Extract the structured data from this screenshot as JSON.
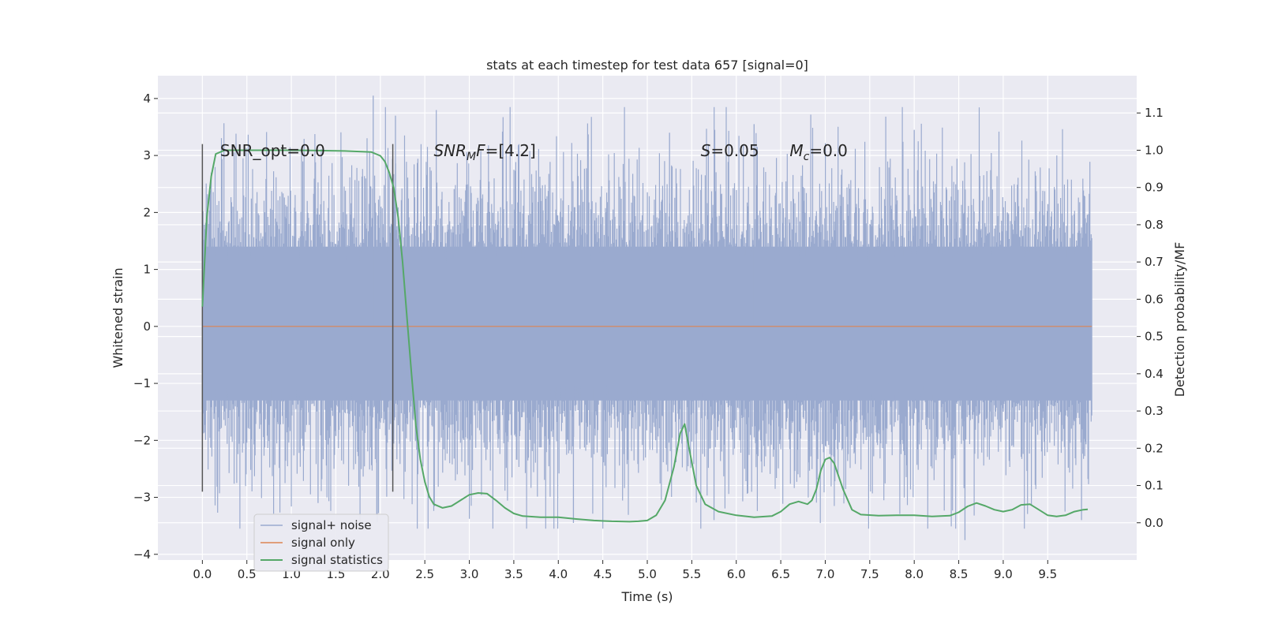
{
  "chart_data": {
    "type": "line",
    "title": "stats at each timestep for test data 657 [signal=0]",
    "xlabel": "Time (s)",
    "ylabel": "Whitened strain",
    "y2label": "Detection probability/MF",
    "xlim": [
      -0.5,
      10.5
    ],
    "ylim": [
      -4.1,
      4.4
    ],
    "y2lim": [
      -0.1,
      1.2
    ],
    "x_ticks": [
      0.0,
      0.5,
      1.0,
      1.5,
      2.0,
      2.5,
      3.0,
      3.5,
      4.0,
      4.5,
      5.0,
      5.5,
      6.0,
      6.5,
      7.0,
      7.5,
      8.0,
      8.5,
      9.0,
      9.5
    ],
    "x_tick_labels": [
      "0.0",
      "0.5",
      "1.0",
      "1.5",
      "2.0",
      "2.5",
      "3.0",
      "3.5",
      "4.0",
      "4.5",
      "5.0",
      "5.5",
      "6.0",
      "6.5",
      "7.0",
      "7.5",
      "8.0",
      "8.5",
      "9.0",
      "9.5"
    ],
    "y_ticks": [
      4,
      3,
      2,
      1,
      0,
      -1,
      -2,
      -3,
      -4
    ],
    "y_tick_labels": [
      "4",
      "3",
      "2",
      "1",
      "0",
      "−1",
      "−2",
      "−3",
      "−4"
    ],
    "y2_ticks": [
      1.1,
      1.0,
      0.9,
      0.8,
      0.7,
      0.6,
      0.5,
      0.4,
      0.3,
      0.2,
      0.1,
      0.0
    ],
    "y2_tick_labels": [
      "1.1",
      "1.0",
      "0.9",
      "0.8",
      "0.7",
      "0.6",
      "0.5",
      "0.4",
      "0.3",
      "0.2",
      "0.1",
      "0.0"
    ],
    "grid": true,
    "legend_position": "lower-left",
    "colors": {
      "noise": "#9aaacf",
      "signal": "#dd8452",
      "stats": "#55a868",
      "vline": "#555555",
      "background": "#eaeaf2"
    },
    "series": [
      {
        "name": "signal+ noise",
        "axis": "left",
        "style": "dense-noise",
        "x_start": 0.0,
        "x_end": 9.995,
        "core_band": [
          -1.3,
          1.4
        ],
        "peak_max": 4.05,
        "peak_min": -3.75
      },
      {
        "name": "signal only",
        "axis": "left",
        "x": [
          0.0,
          9.995
        ],
        "y": [
          0.0,
          0.0
        ]
      },
      {
        "name": "signal statistics",
        "axis": "right",
        "x": [
          0.0,
          0.05,
          0.1,
          0.15,
          0.25,
          0.4,
          0.7,
          1.0,
          1.3,
          1.6,
          1.9,
          2.0,
          2.05,
          2.1,
          2.15,
          2.2,
          2.25,
          2.3,
          2.35,
          2.4,
          2.45,
          2.5,
          2.55,
          2.6,
          2.7,
          2.8,
          2.9,
          3.0,
          3.1,
          3.2,
          3.3,
          3.4,
          3.5,
          3.6,
          3.8,
          4.0,
          4.2,
          4.4,
          4.6,
          4.8,
          4.9,
          5.0,
          5.1,
          5.2,
          5.3,
          5.37,
          5.42,
          5.47,
          5.55,
          5.65,
          5.8,
          6.0,
          6.2,
          6.4,
          6.5,
          6.6,
          6.7,
          6.8,
          6.85,
          6.9,
          6.95,
          7.0,
          7.05,
          7.1,
          7.2,
          7.3,
          7.4,
          7.6,
          7.8,
          8.0,
          8.2,
          8.4,
          8.5,
          8.6,
          8.7,
          8.8,
          8.9,
          9.0,
          9.1,
          9.2,
          9.3,
          9.4,
          9.5,
          9.6,
          9.7,
          9.8,
          9.9,
          9.95
        ],
        "y": [
          0.58,
          0.82,
          0.93,
          0.99,
          1.0,
          1.0,
          1.0,
          1.0,
          0.999,
          0.998,
          0.995,
          0.985,
          0.97,
          0.94,
          0.9,
          0.82,
          0.7,
          0.55,
          0.4,
          0.26,
          0.17,
          0.11,
          0.07,
          0.05,
          0.04,
          0.045,
          0.06,
          0.075,
          0.08,
          0.078,
          0.06,
          0.04,
          0.025,
          0.018,
          0.015,
          0.015,
          0.01,
          0.006,
          0.004,
          0.003,
          0.004,
          0.006,
          0.02,
          0.06,
          0.15,
          0.24,
          0.265,
          0.2,
          0.1,
          0.05,
          0.03,
          0.02,
          0.015,
          0.018,
          0.03,
          0.05,
          0.057,
          0.05,
          0.06,
          0.09,
          0.14,
          0.17,
          0.175,
          0.16,
          0.09,
          0.035,
          0.022,
          0.019,
          0.02,
          0.02,
          0.017,
          0.019,
          0.028,
          0.044,
          0.053,
          0.045,
          0.035,
          0.03,
          0.035,
          0.048,
          0.05,
          0.035,
          0.02,
          0.017,
          0.02,
          0.03,
          0.035,
          0.036
        ]
      }
    ],
    "vertical_lines": [
      {
        "x": 0.0,
        "y_range": [
          -2.9,
          3.2
        ]
      },
      {
        "x": 2.14,
        "y_range": [
          -2.9,
          3.2
        ]
      }
    ],
    "annotations": [
      {
        "x": 0.2,
        "y": 3.1,
        "prefix": "SNR_opt=0.0",
        "sub": "",
        "suffix": ""
      },
      {
        "x": 2.6,
        "y": 3.1,
        "prefix": "SNR",
        "sub": "M",
        "suffix": "F=[4.2]"
      },
      {
        "x": 5.6,
        "y": 3.1,
        "prefix": "S",
        "sub": "",
        "suffix": "=0.05"
      },
      {
        "x": 6.6,
        "y": 3.1,
        "prefix": "M",
        "sub": "c",
        "suffix": "=0.0"
      }
    ]
  }
}
